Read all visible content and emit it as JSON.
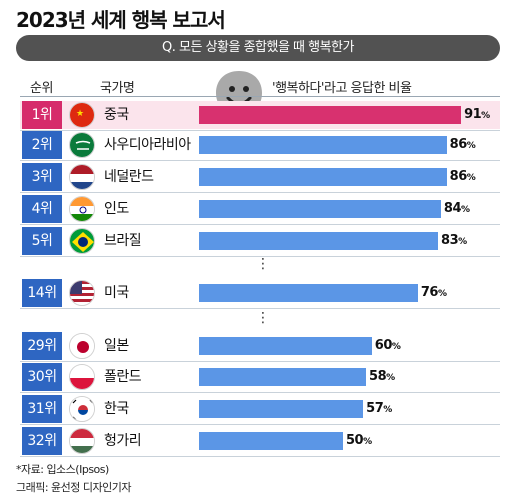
{
  "title": "2023년 세계 행복 보고서",
  "question": "Q. 모든 상황을 종합했을 때 행복한가",
  "columns": {
    "rank": "순위",
    "country": "국가명",
    "metric": "'행복하다'라고 응답한 비율"
  },
  "colors": {
    "highlight_rank": "#d62b6b",
    "highlight_bar": "#d8316f",
    "rank": "#2e66c2",
    "bar": "#5b96e6",
    "highlight_bg": "#fbe4ec"
  },
  "chart_data": {
    "type": "bar",
    "orientation": "horizontal",
    "title": "2023년 세계 행복 보고서",
    "subtitle": "Q. 모든 상황을 종합했을 때 행복한가",
    "value_label": "'행복하다'라고 응답한 비율",
    "unit": "%",
    "xlim": [
      0,
      100
    ],
    "rows": [
      {
        "rank": "1위",
        "country": "중국",
        "value": 91,
        "flag": "china-flag",
        "highlight": true
      },
      {
        "rank": "2위",
        "country": "사우디아라비아",
        "value": 86,
        "flag": "saudi-arabia-flag"
      },
      {
        "rank": "3위",
        "country": "네덜란드",
        "value": 86,
        "flag": "netherlands-flag"
      },
      {
        "rank": "4위",
        "country": "인도",
        "value": 84,
        "flag": "india-flag"
      },
      {
        "rank": "5위",
        "country": "브라질",
        "value": 83,
        "flag": "brazil-flag"
      },
      {
        "rank": "14위",
        "country": "미국",
        "value": 76,
        "flag": "usa-flag"
      },
      {
        "rank": "29위",
        "country": "일본",
        "value": 60,
        "flag": "japan-flag"
      },
      {
        "rank": "30위",
        "country": "폴란드",
        "value": 58,
        "flag": "poland-flag"
      },
      {
        "rank": "31위",
        "country": "한국",
        "value": 57,
        "flag": "korea-flag"
      },
      {
        "rank": "32위",
        "country": "헝가리",
        "value": 50,
        "flag": "hungary-flag"
      }
    ]
  },
  "footer": {
    "source": "*자료: 입소스(Ipsos)",
    "credit": "그래픽: 윤선정 디자인기자"
  }
}
